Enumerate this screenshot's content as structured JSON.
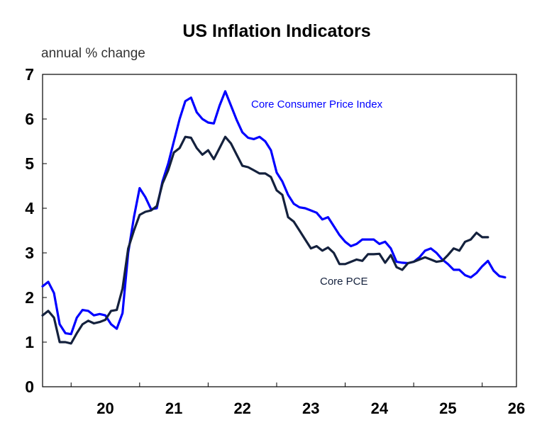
{
  "chart_data": {
    "type": "line",
    "title": "US Inflation Indicators",
    "ylabel": "annual % change",
    "xlabel": "",
    "ylim": [
      0,
      7
    ],
    "yticks": [
      "0",
      "1",
      "2",
      "3",
      "4",
      "5",
      "6",
      "7"
    ],
    "xticks": [
      "20",
      "21",
      "22",
      "23",
      "24",
      "25",
      "26"
    ],
    "grid": false,
    "series": [
      {
        "name": "Core Consumer Price Index",
        "color": "#0000ff",
        "points": [
          [
            "2019-08",
            2.25
          ],
          [
            "2019-09",
            2.35
          ],
          [
            "2019-10",
            2.1
          ],
          [
            "2019-11",
            1.4
          ],
          [
            "2019-12",
            1.2
          ],
          [
            "2020-01",
            1.18
          ],
          [
            "2020-02",
            1.55
          ],
          [
            "2020-03",
            1.72
          ],
          [
            "2020-04",
            1.7
          ],
          [
            "2020-05",
            1.6
          ],
          [
            "2020-06",
            1.63
          ],
          [
            "2020-07",
            1.6
          ],
          [
            "2020-08",
            1.4
          ],
          [
            "2020-09",
            1.3
          ],
          [
            "2020-10",
            1.65
          ],
          [
            "2020-11",
            3.0
          ],
          [
            "2020-12",
            3.8
          ],
          [
            "2021-01",
            4.45
          ],
          [
            "2021-02",
            4.25
          ],
          [
            "2021-03",
            3.98
          ],
          [
            "2021-04",
            4.0
          ],
          [
            "2021-05",
            4.6
          ],
          [
            "2021-06",
            5.0
          ],
          [
            "2021-07",
            5.5
          ],
          [
            "2021-08",
            6.0
          ],
          [
            "2021-09",
            6.4
          ],
          [
            "2021-10",
            6.48
          ],
          [
            "2021-11",
            6.15
          ],
          [
            "2021-12",
            6.0
          ],
          [
            "2022-01",
            5.92
          ],
          [
            "2022-02",
            5.9
          ],
          [
            "2022-03",
            6.3
          ],
          [
            "2022-04",
            6.62
          ],
          [
            "2022-05",
            6.3
          ],
          [
            "2022-06",
            5.98
          ],
          [
            "2022-07",
            5.7
          ],
          [
            "2022-08",
            5.58
          ],
          [
            "2022-09",
            5.55
          ],
          [
            "2022-10",
            5.6
          ],
          [
            "2022-11",
            5.5
          ],
          [
            "2022-12",
            5.3
          ],
          [
            "2023-01",
            4.8
          ],
          [
            "2023-02",
            4.6
          ],
          [
            "2023-03",
            4.3
          ],
          [
            "2023-04",
            4.1
          ],
          [
            "2023-05",
            4.02
          ],
          [
            "2023-06",
            4.0
          ],
          [
            "2023-07",
            3.95
          ],
          [
            "2023-08",
            3.9
          ],
          [
            "2023-09",
            3.75
          ],
          [
            "2023-10",
            3.8
          ],
          [
            "2023-11",
            3.6
          ],
          [
            "2023-12",
            3.4
          ],
          [
            "2024-01",
            3.25
          ],
          [
            "2024-02",
            3.15
          ],
          [
            "2024-03",
            3.2
          ],
          [
            "2024-04",
            3.3
          ],
          [
            "2024-05",
            3.3
          ],
          [
            "2024-06",
            3.3
          ],
          [
            "2024-07",
            3.2
          ],
          [
            "2024-08",
            3.25
          ],
          [
            "2024-09",
            3.1
          ],
          [
            "2024-10",
            2.8
          ],
          [
            "2024-11",
            2.78
          ],
          [
            "2024-12",
            2.77
          ],
          [
            "2025-01",
            2.8
          ],
          [
            "2025-02",
            2.9
          ],
          [
            "2025-03",
            3.05
          ],
          [
            "2025-04",
            3.1
          ],
          [
            "2025-05",
            3.0
          ],
          [
            "2025-06",
            2.85
          ],
          [
            "2025-07",
            2.75
          ],
          [
            "2025-08",
            2.62
          ],
          [
            "2025-09",
            2.62
          ],
          [
            "2025-10",
            2.5
          ],
          [
            "2025-11",
            2.45
          ],
          [
            "2025-12",
            2.55
          ],
          [
            "2026-01",
            2.7
          ],
          [
            "2026-02",
            2.82
          ],
          [
            "2026-03",
            2.6
          ],
          [
            "2026-04",
            2.48
          ],
          [
            "2026-05",
            2.45
          ]
        ]
      },
      {
        "name": "Core PCE",
        "color": "#14213d",
        "points": [
          [
            "2019-08",
            1.6
          ],
          [
            "2019-09",
            1.7
          ],
          [
            "2019-10",
            1.55
          ],
          [
            "2019-11",
            1.0
          ],
          [
            "2019-12",
            1.0
          ],
          [
            "2020-01",
            0.97
          ],
          [
            "2020-02",
            1.2
          ],
          [
            "2020-03",
            1.4
          ],
          [
            "2020-04",
            1.48
          ],
          [
            "2020-05",
            1.42
          ],
          [
            "2020-06",
            1.45
          ],
          [
            "2020-07",
            1.5
          ],
          [
            "2020-08",
            1.7
          ],
          [
            "2020-09",
            1.72
          ],
          [
            "2020-10",
            2.2
          ],
          [
            "2020-11",
            3.1
          ],
          [
            "2020-12",
            3.5
          ],
          [
            "2021-01",
            3.85
          ],
          [
            "2021-02",
            3.92
          ],
          [
            "2021-03",
            3.95
          ],
          [
            "2021-04",
            4.05
          ],
          [
            "2021-05",
            4.55
          ],
          [
            "2021-06",
            4.85
          ],
          [
            "2021-07",
            5.25
          ],
          [
            "2021-08",
            5.35
          ],
          [
            "2021-09",
            5.6
          ],
          [
            "2021-10",
            5.58
          ],
          [
            "2021-11",
            5.35
          ],
          [
            "2021-12",
            5.2
          ],
          [
            "2022-01",
            5.3
          ],
          [
            "2022-02",
            5.1
          ],
          [
            "2022-03",
            5.35
          ],
          [
            "2022-04",
            5.6
          ],
          [
            "2022-05",
            5.45
          ],
          [
            "2022-06",
            5.2
          ],
          [
            "2022-07",
            4.95
          ],
          [
            "2022-08",
            4.92
          ],
          [
            "2022-09",
            4.85
          ],
          [
            "2022-10",
            4.78
          ],
          [
            "2022-11",
            4.78
          ],
          [
            "2022-12",
            4.7
          ],
          [
            "2023-01",
            4.4
          ],
          [
            "2023-02",
            4.3
          ],
          [
            "2023-03",
            3.8
          ],
          [
            "2023-04",
            3.7
          ],
          [
            "2023-05",
            3.5
          ],
          [
            "2023-06",
            3.3
          ],
          [
            "2023-07",
            3.1
          ],
          [
            "2023-08",
            3.15
          ],
          [
            "2023-09",
            3.05
          ],
          [
            "2023-10",
            3.12
          ],
          [
            "2023-11",
            3.0
          ],
          [
            "2023-12",
            2.75
          ],
          [
            "2024-01",
            2.75
          ],
          [
            "2024-02",
            2.8
          ],
          [
            "2024-03",
            2.85
          ],
          [
            "2024-04",
            2.82
          ],
          [
            "2024-05",
            2.97
          ],
          [
            "2024-06",
            2.97
          ],
          [
            "2024-07",
            2.98
          ],
          [
            "2024-08",
            2.78
          ],
          [
            "2024-09",
            2.95
          ],
          [
            "2024-10",
            2.68
          ],
          [
            "2024-11",
            2.62
          ],
          [
            "2024-12",
            2.77
          ],
          [
            "2025-01",
            2.8
          ],
          [
            "2025-02",
            2.85
          ],
          [
            "2025-03",
            2.9
          ],
          [
            "2025-04",
            2.85
          ],
          [
            "2025-05",
            2.8
          ],
          [
            "2025-06",
            2.82
          ],
          [
            "2025-07",
            2.95
          ],
          [
            "2025-08",
            3.1
          ],
          [
            "2025-09",
            3.05
          ],
          [
            "2025-10",
            3.25
          ],
          [
            "2025-11",
            3.3
          ],
          [
            "2025-12",
            3.45
          ],
          [
            "2026-01",
            3.35
          ],
          [
            "2026-02",
            3.35
          ]
        ]
      }
    ]
  }
}
